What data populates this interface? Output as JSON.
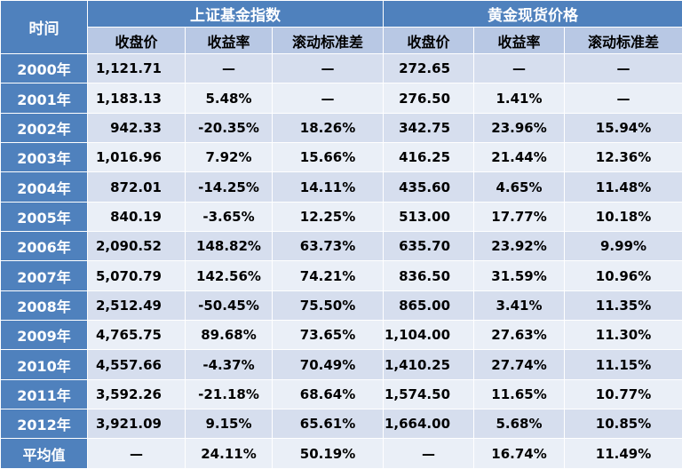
{
  "header": {
    "corner": "时间",
    "group_a": "上证基金指数",
    "group_b": "黄金现货价格",
    "cols": [
      "收盘价",
      "收益率",
      "滚动标准差",
      "收盘价",
      "收益率",
      "滚动标准差"
    ]
  },
  "rows": [
    {
      "year": "2000年",
      "a_close": "1,121.71",
      "a_ret": "—",
      "a_std": "—",
      "b_close": "272.65",
      "b_ret": "—",
      "b_std": "—"
    },
    {
      "year": "2001年",
      "a_close": "1,183.13",
      "a_ret": "5.48%",
      "a_std": "—",
      "b_close": "276.50",
      "b_ret": "1.41%",
      "b_std": "—"
    },
    {
      "year": "2002年",
      "a_close": "942.33",
      "a_ret": "-20.35%",
      "a_std": "18.26%",
      "b_close": "342.75",
      "b_ret": "23.96%",
      "b_std": "15.94%"
    },
    {
      "year": "2003年",
      "a_close": "1,016.96",
      "a_ret": "7.92%",
      "a_std": "15.66%",
      "b_close": "416.25",
      "b_ret": "21.44%",
      "b_std": "12.36%"
    },
    {
      "year": "2004年",
      "a_close": "872.01",
      "a_ret": "-14.25%",
      "a_std": "14.11%",
      "b_close": "435.60",
      "b_ret": "4.65%",
      "b_std": "11.48%"
    },
    {
      "year": "2005年",
      "a_close": "840.19",
      "a_ret": "-3.65%",
      "a_std": "12.25%",
      "b_close": "513.00",
      "b_ret": "17.77%",
      "b_std": "10.18%"
    },
    {
      "year": "2006年",
      "a_close": "2,090.52",
      "a_ret": "148.82%",
      "a_std": "63.73%",
      "b_close": "635.70",
      "b_ret": "23.92%",
      "b_std": "9.99%"
    },
    {
      "year": "2007年",
      "a_close": "5,070.79",
      "a_ret": "142.56%",
      "a_std": "74.21%",
      "b_close": "836.50",
      "b_ret": "31.59%",
      "b_std": "10.96%"
    },
    {
      "year": "2008年",
      "a_close": "2,512.49",
      "a_ret": "-50.45%",
      "a_std": "75.50%",
      "b_close": "865.00",
      "b_ret": "3.41%",
      "b_std": "11.35%"
    },
    {
      "year": "2009年",
      "a_close": "4,765.75",
      "a_ret": "89.68%",
      "a_std": "73.65%",
      "b_close": "1,104.00",
      "b_ret": "27.63%",
      "b_std": "11.30%"
    },
    {
      "year": "2010年",
      "a_close": "4,557.66",
      "a_ret": "-4.37%",
      "a_std": "70.49%",
      "b_close": "1,410.25",
      "b_ret": "27.74%",
      "b_std": "11.15%"
    },
    {
      "year": "2011年",
      "a_close": "3,592.26",
      "a_ret": "-21.18%",
      "a_std": "68.64%",
      "b_close": "1,574.50",
      "b_ret": "11.65%",
      "b_std": "10.77%"
    },
    {
      "year": "2012年",
      "a_close": "3,921.09",
      "a_ret": "9.15%",
      "a_std": "65.61%",
      "b_close": "1,664.00",
      "b_ret": "5.68%",
      "b_std": "10.85%"
    },
    {
      "year": "平均值",
      "a_close": "—",
      "a_ret": "24.11%",
      "a_std": "50.19%",
      "b_close": "—",
      "b_ret": "16.74%",
      "b_std": "11.49%"
    }
  ],
  "colors": {
    "header_blue": "#4f81bd",
    "subheader": "#b8c8e4",
    "row_dark": "#d6deee",
    "row_light": "#eaeff7"
  }
}
